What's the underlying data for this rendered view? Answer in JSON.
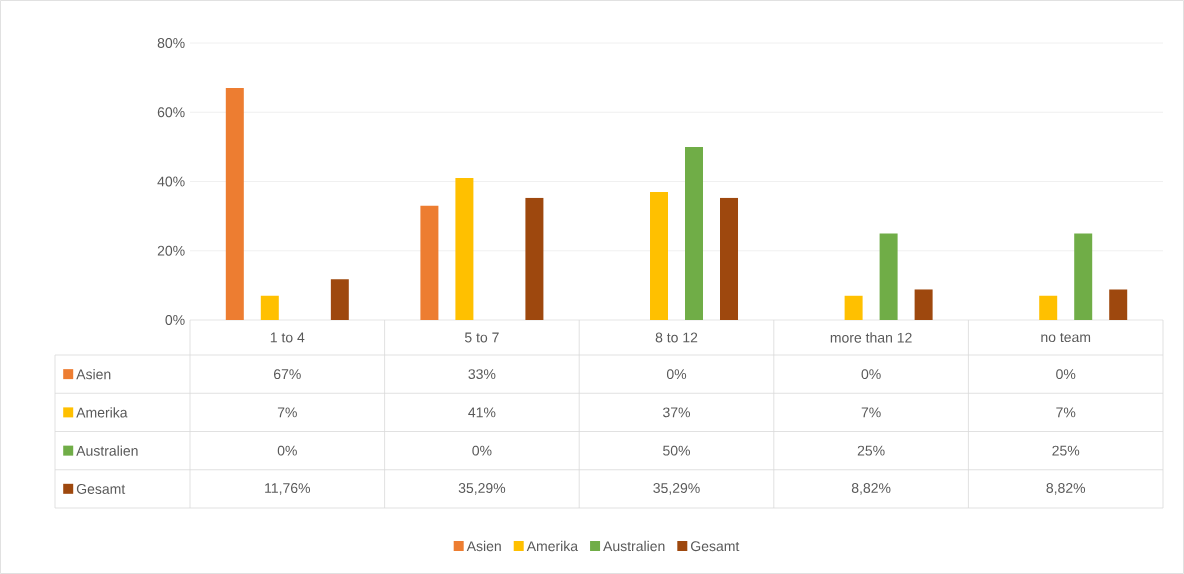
{
  "chart_data": {
    "type": "bar",
    "categories": [
      "1  to 4",
      "5 to 7",
      "8 to 12",
      "more than 12",
      "no team"
    ],
    "series": [
      {
        "name": "Asien",
        "color": "#ed7d31",
        "values": [
          67,
          33,
          0,
          0,
          0
        ],
        "value_labels": [
          "67%",
          "33%",
          "0%",
          "0%",
          "0%"
        ]
      },
      {
        "name": "Amerika",
        "color": "#ffc000",
        "values": [
          7,
          41,
          37,
          7,
          7
        ],
        "value_labels": [
          "7%",
          "41%",
          "37%",
          "7%",
          "7%"
        ]
      },
      {
        "name": "Australien",
        "color": "#70ad47",
        "values": [
          0,
          0,
          50,
          25,
          25
        ],
        "value_labels": [
          "0%",
          "0%",
          "50%",
          "25%",
          "25%"
        ]
      },
      {
        "name": "Gesamt",
        "color": "#9e480e",
        "values": [
          11.76,
          35.29,
          35.29,
          8.82,
          8.82
        ],
        "value_labels": [
          "11,76%",
          "35,29%",
          "35,29%",
          "8,82%",
          "8,82%"
        ]
      }
    ],
    "ylim": [
      0,
      80
    ],
    "yticks": [
      {
        "value": 0,
        "label": "0%"
      },
      {
        "value": 20,
        "label": "20%"
      },
      {
        "value": 40,
        "label": "40%"
      },
      {
        "value": 60,
        "label": "60%"
      },
      {
        "value": 80,
        "label": "80%"
      }
    ],
    "grid": "y",
    "legend": "bottom"
  }
}
